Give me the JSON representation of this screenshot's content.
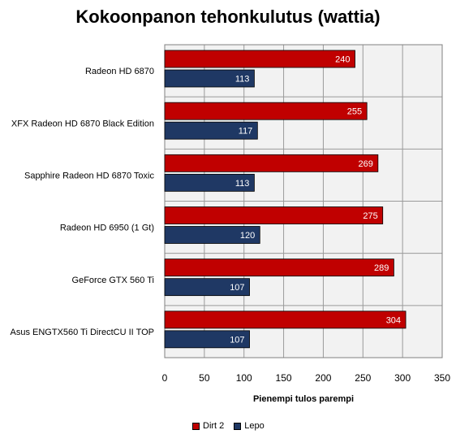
{
  "chart_data": {
    "type": "bar",
    "orientation": "horizontal",
    "title": "Kokoonpanon tehonkulutus (wattia)",
    "xlabel": "Pienempi tulos parempi",
    "ylabel": "",
    "xlim": [
      0,
      350
    ],
    "xticks": [
      0,
      50,
      100,
      150,
      200,
      250,
      300,
      350
    ],
    "grid": true,
    "legend_position": "bottom",
    "categories": [
      "Radeon HD 6870",
      "XFX Radeon HD 6870 Black Edition",
      "Sapphire Radeon HD 6870 Toxic",
      "Radeon HD 6950 (1 Gt)",
      "GeForce GTX 560 Ti",
      "Asus ENGTX560 Ti DirectCU II TOP"
    ],
    "series": [
      {
        "name": "Dirt 2",
        "color": "#c00000",
        "values": [
          240,
          255,
          269,
          275,
          289,
          304
        ]
      },
      {
        "name": "Lepo",
        "color": "#1f3864",
        "values": [
          113,
          117,
          113,
          120,
          107,
          107
        ]
      }
    ]
  }
}
